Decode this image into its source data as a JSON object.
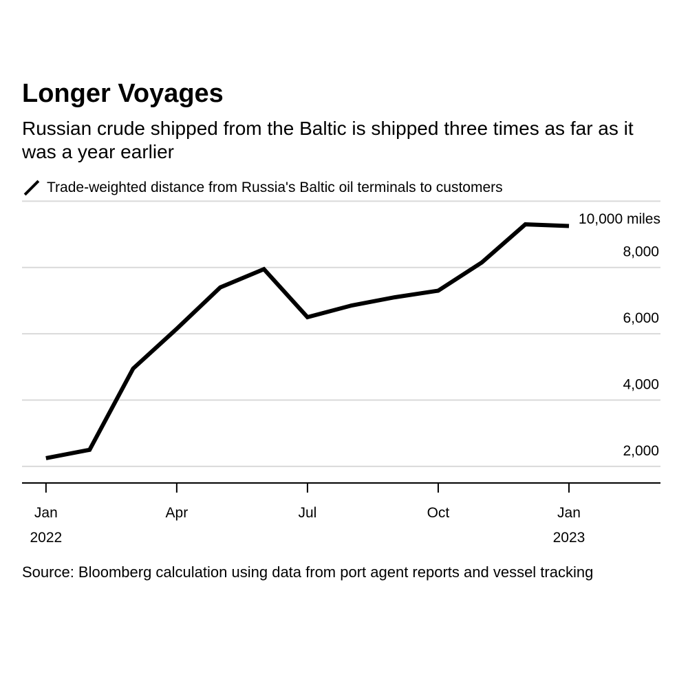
{
  "header": {
    "title": "Longer Voyages",
    "subtitle": "Russian crude shipped from the Baltic is shipped three times as far as it was a year earlier"
  },
  "legend": {
    "label": "Trade-weighted distance from Russia's Baltic oil terminals to customers"
  },
  "axis": {
    "unit_label": "10,000 miles"
  },
  "footer": {
    "source": "Source: Bloomberg calculation using data from port agent reports and vessel tracking"
  },
  "colors": {
    "line": "#000000",
    "grid": "#d9d9d9",
    "axis": "#000000"
  },
  "chart_data": {
    "type": "line",
    "title": "Longer Voyages",
    "ylabel": "miles",
    "ylim": [
      1500,
      9800
    ],
    "y_ticks": [
      {
        "value": 2000,
        "label": "2,000"
      },
      {
        "value": 4000,
        "label": "4,000"
      },
      {
        "value": 6000,
        "label": "6,000"
      },
      {
        "value": 8000,
        "label": "8,000"
      }
    ],
    "top_gridline": 10000,
    "x_ticks": [
      {
        "month": 0,
        "label": "Jan",
        "year": "2022"
      },
      {
        "month": 3,
        "label": "Apr"
      },
      {
        "month": 6,
        "label": "Jul"
      },
      {
        "month": 9,
        "label": "Oct"
      },
      {
        "month": 12,
        "label": "Jan",
        "year": "2023"
      }
    ],
    "xlim": [
      -0.55,
      14.1
    ],
    "series": [
      {
        "name": "Trade-weighted distance from Russia's Baltic oil terminals to customers",
        "x": [
          0,
          1,
          2,
          3,
          4,
          5,
          6,
          7,
          8,
          9,
          10,
          11,
          12
        ],
        "values": [
          2250,
          2500,
          4950,
          6150,
          7400,
          7950,
          6500,
          6850,
          7100,
          7300,
          8150,
          9300,
          9250
        ]
      }
    ]
  }
}
